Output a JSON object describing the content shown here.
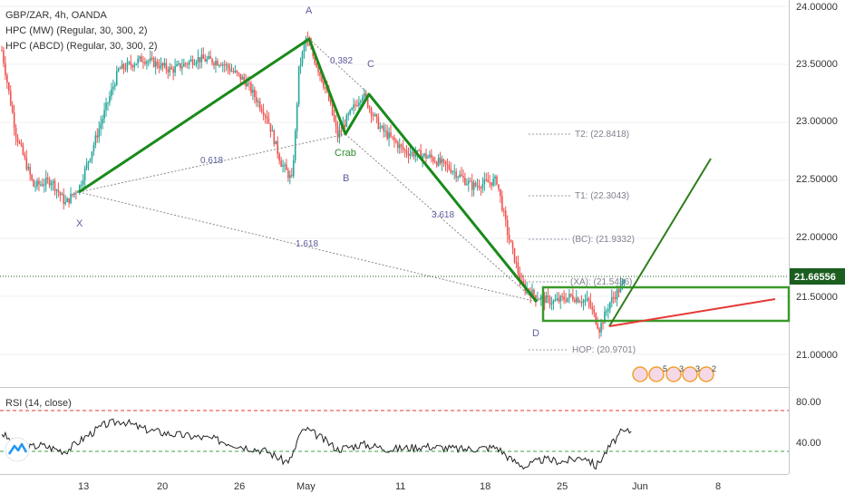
{
  "header": {
    "symbol": "GBP/ZAR, 4h, OANDA",
    "indicator_1": "HPC (MW) (Regular, 30, 300, 2)",
    "indicator_2": "HPC (ABCD) (Regular, 30, 300, 2)"
  },
  "rsi": {
    "label": "RSI (14, close)",
    "ticks": [
      "80.00",
      "40.00"
    ]
  },
  "price_axis": {
    "ticks": [
      "24.00000",
      "23.50000",
      "23.00000",
      "22.50000",
      "22.00000",
      "21.50000",
      "21.00000"
    ],
    "current": "21.66556"
  },
  "time_axis": {
    "ticks": [
      "13",
      "20",
      "26",
      "May",
      "11",
      "18",
      "25",
      "Jun",
      "8"
    ]
  },
  "pattern": {
    "points": {
      "X": "X",
      "A": "A",
      "B": "B",
      "C": "C",
      "D": "D"
    },
    "pattern_name": "Crab",
    "ratios": {
      "xb": "0.618",
      "ac": "0.382",
      "bd": "3.618",
      "xd": "1.618"
    },
    "targets": {
      "t2": "T2: (22.8418)",
      "t1": "T1: (22.3043)",
      "bc": "(BC): (21.9332)",
      "xa": "(XA): (21.5436)",
      "hop": "HOP: (20.9701)"
    }
  },
  "badges": [
    "5",
    "3",
    "3",
    "2"
  ],
  "colors": {
    "up": "#26a69a",
    "down": "#ef5350",
    "pattern": "#1a8a1a",
    "projection_up": "#2e7d1a",
    "projection_down": "#e53935",
    "current_price_bg": "#1b5e20",
    "rsi_upper": "#e53935",
    "rsi_lower": "#43a047"
  },
  "chart_data": {
    "type": "candlestick",
    "title": "GBP/ZAR, 4h, OANDA",
    "ylim": [
      20.7,
      24.1
    ],
    "price_waypoints": [
      {
        "t": 0,
        "p": 23.62
      },
      {
        "t": 8,
        "p": 22.9
      },
      {
        "t": 18,
        "p": 22.45
      },
      {
        "t": 28,
        "p": 22.5
      },
      {
        "t": 36,
        "p": 22.3
      },
      {
        "t": 44,
        "p": 22.45
      },
      {
        "t": 54,
        "p": 22.9
      },
      {
        "t": 66,
        "p": 23.45
      },
      {
        "t": 80,
        "p": 23.55
      },
      {
        "t": 96,
        "p": 23.45
      },
      {
        "t": 110,
        "p": 23.55
      },
      {
        "t": 124,
        "p": 23.52
      },
      {
        "t": 138,
        "p": 23.35
      },
      {
        "t": 150,
        "p": 23.05
      },
      {
        "t": 158,
        "p": 22.65
      },
      {
        "t": 164,
        "p": 22.5
      },
      {
        "t": 166,
        "p": 22.9
      },
      {
        "t": 168,
        "p": 23.45
      },
      {
        "t": 172,
        "p": 23.72
      },
      {
        "t": 178,
        "p": 23.5
      },
      {
        "t": 184,
        "p": 23.25
      },
      {
        "t": 190,
        "p": 22.88
      },
      {
        "t": 196,
        "p": 23.05
      },
      {
        "t": 204,
        "p": 23.25
      },
      {
        "t": 214,
        "p": 22.95
      },
      {
        "t": 228,
        "p": 22.75
      },
      {
        "t": 242,
        "p": 22.7
      },
      {
        "t": 254,
        "p": 22.6
      },
      {
        "t": 266,
        "p": 22.45
      },
      {
        "t": 280,
        "p": 22.5
      },
      {
        "t": 286,
        "p": 22.05
      },
      {
        "t": 294,
        "p": 21.6
      },
      {
        "t": 302,
        "p": 21.5
      },
      {
        "t": 312,
        "p": 21.45
      },
      {
        "t": 322,
        "p": 21.5
      },
      {
        "t": 332,
        "p": 21.45
      },
      {
        "t": 338,
        "p": 21.22
      },
      {
        "t": 344,
        "p": 21.45
      },
      {
        "t": 352,
        "p": 21.62
      }
    ],
    "rsi_waypoints": [
      {
        "t": 0,
        "v": 58
      },
      {
        "t": 10,
        "v": 42
      },
      {
        "t": 22,
        "v": 46
      },
      {
        "t": 36,
        "v": 40
      },
      {
        "t": 48,
        "v": 55
      },
      {
        "t": 58,
        "v": 66
      },
      {
        "t": 68,
        "v": 70
      },
      {
        "t": 80,
        "v": 62
      },
      {
        "t": 92,
        "v": 58
      },
      {
        "t": 106,
        "v": 55
      },
      {
        "t": 120,
        "v": 52
      },
      {
        "t": 136,
        "v": 45
      },
      {
        "t": 150,
        "v": 40
      },
      {
        "t": 160,
        "v": 30
      },
      {
        "t": 164,
        "v": 33
      },
      {
        "t": 168,
        "v": 55
      },
      {
        "t": 172,
        "v": 62
      },
      {
        "t": 180,
        "v": 54
      },
      {
        "t": 190,
        "v": 42
      },
      {
        "t": 204,
        "v": 47
      },
      {
        "t": 220,
        "v": 42
      },
      {
        "t": 240,
        "v": 45
      },
      {
        "t": 260,
        "v": 42
      },
      {
        "t": 280,
        "v": 44
      },
      {
        "t": 288,
        "v": 32
      },
      {
        "t": 296,
        "v": 25
      },
      {
        "t": 306,
        "v": 32
      },
      {
        "t": 318,
        "v": 30
      },
      {
        "t": 330,
        "v": 35
      },
      {
        "t": 336,
        "v": 25
      },
      {
        "t": 344,
        "v": 45
      },
      {
        "t": 350,
        "v": 58
      },
      {
        "t": 356,
        "v": 60
      }
    ],
    "pattern_prices": {
      "X": 22.4,
      "A": 23.72,
      "B": 22.88,
      "C": 23.25,
      "D": 21.45
    },
    "reversal_zone": [
      21.27,
      21.56
    ],
    "projection": {
      "up_target": 22.68,
      "trend_line": [
        21.2,
        21.46
      ]
    }
  }
}
